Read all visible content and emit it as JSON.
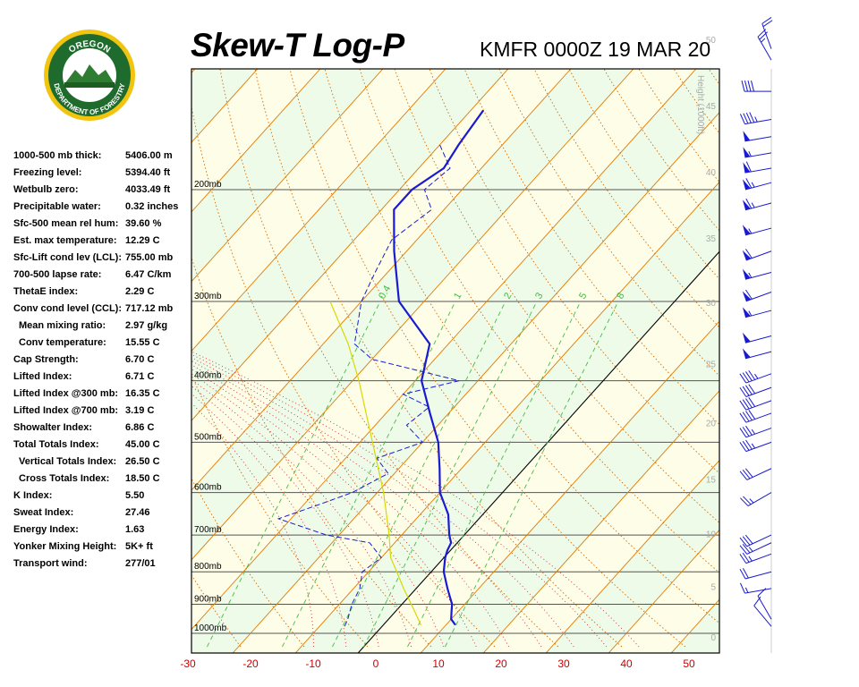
{
  "title": "Skew-T Log-P",
  "subtitle": "KMFR 0000Z 19 MAR 20",
  "logo": {
    "top_text": "OREGON",
    "bottom_text": "DEPARTMENT OF FORESTRY"
  },
  "stats": [
    {
      "label": "1000-500 mb thick:",
      "value": "5406.00 m",
      "indent": false
    },
    {
      "label": "Freezing level:",
      "value": "5394.40 ft",
      "indent": false
    },
    {
      "label": "Wetbulb zero:",
      "value": "4033.49 ft",
      "indent": false
    },
    {
      "label": "Precipitable water:",
      "value": "0.32 inches",
      "indent": false
    },
    {
      "label": "Sfc-500 mean rel hum:",
      "value": "39.60 %",
      "indent": false
    },
    {
      "label": "Est. max temperature:",
      "value": "12.29 C",
      "indent": false
    },
    {
      "label": "Sfc-Lift cond lev (LCL):",
      "value": "755.00 mb",
      "indent": false
    },
    {
      "label": "700-500 lapse rate:",
      "value": "6.47 C/km",
      "indent": false
    },
    {
      "label": "ThetaE index:",
      "value": "2.29 C",
      "indent": false
    },
    {
      "label": "Conv cond level (CCL):",
      "value": "717.12 mb",
      "indent": false
    },
    {
      "label": "Mean mixing ratio:",
      "value": "2.97 g/kg",
      "indent": true
    },
    {
      "label": "Conv temperature:",
      "value": "15.55 C",
      "indent": true
    },
    {
      "label": "Cap Strength:",
      "value": "6.70 C",
      "indent": false
    },
    {
      "label": "Lifted Index:",
      "value": "6.71 C",
      "indent": false
    },
    {
      "label": "Lifted Index @300 mb:",
      "value": "16.35 C",
      "indent": false
    },
    {
      "label": "Lifted Index @700 mb:",
      "value": "3.19 C",
      "indent": false
    },
    {
      "label": "Showalter Index:",
      "value": "6.86 C",
      "indent": false
    },
    {
      "label": "Total Totals Index:",
      "value": "45.00 C",
      "indent": false
    },
    {
      "label": "Vertical Totals Index:",
      "value": "26.50 C",
      "indent": true
    },
    {
      "label": "Cross Totals Index:",
      "value": "18.50 C",
      "indent": true
    },
    {
      "label": "K Index:",
      "value": "5.50",
      "indent": false
    },
    {
      "label": "Sweat Index:",
      "value": "27.46",
      "indent": false
    },
    {
      "label": "Energy Index:",
      "value": "1.63",
      "indent": false
    },
    {
      "label": "Yonker Mixing Height:",
      "value": "5K+ ft",
      "indent": false
    },
    {
      "label": "Transport wind:",
      "value": "277/01",
      "indent": false
    }
  ],
  "chart_data": {
    "type": "line",
    "xlabel": "",
    "ylabel": "",
    "x_ticks": [
      -30,
      -20,
      -10,
      0,
      10,
      20,
      30,
      40,
      50
    ],
    "x_tick_labels": [
      "-30",
      "-20",
      "-10",
      "0",
      "10",
      "20",
      "30",
      "40",
      "50"
    ],
    "pressure_levels": [
      {
        "p": 200,
        "label": "200mb"
      },
      {
        "p": 300,
        "label": "300mb"
      },
      {
        "p": 400,
        "label": "400mb"
      },
      {
        "p": 500,
        "label": "500mb"
      },
      {
        "p": 600,
        "label": "600mb"
      },
      {
        "p": 700,
        "label": "700mb"
      },
      {
        "p": 800,
        "label": "800mb"
      },
      {
        "p": 900,
        "label": "900mb"
      },
      {
        "p": 1000,
        "label": "1000mb"
      }
    ],
    "height_axis": {
      "title": "Height (1000ft)",
      "ticks": [
        {
          "kft": 0,
          "label": "0"
        },
        {
          "kft": 5,
          "label": "5"
        },
        {
          "kft": 10,
          "label": "10"
        },
        {
          "kft": 15,
          "label": "15"
        },
        {
          "kft": 20,
          "label": "20"
        },
        {
          "kft": 25,
          "label": "25"
        },
        {
          "kft": 30,
          "label": "30"
        },
        {
          "kft": 35,
          "label": "35"
        },
        {
          "kft": 40,
          "label": "40"
        },
        {
          "kft": 45,
          "label": "45"
        },
        {
          "kft": 50,
          "label": "50"
        }
      ]
    },
    "mixing_ratio_labels": [
      "0.4",
      "1",
      "2",
      "3",
      "5",
      "8"
    ],
    "series": [
      {
        "name": "",
        "role": "temperature",
        "color": "#1a1ad0",
        "points": [
          {
            "p": 970,
            "t": 11.5
          },
          {
            "p": 950,
            "t": 10.0
          },
          {
            "p": 925,
            "t": 9.0
          },
          {
            "p": 900,
            "t": 8.0
          },
          {
            "p": 850,
            "t": 5.0
          },
          {
            "p": 800,
            "t": 2.0
          },
          {
            "p": 760,
            "t": 0.2
          },
          {
            "p": 740,
            "t": -0.5
          },
          {
            "p": 720,
            "t": -1.0
          },
          {
            "p": 700,
            "t": -2.4
          },
          {
            "p": 650,
            "t": -5.5
          },
          {
            "p": 600,
            "t": -10.0
          },
          {
            "p": 550,
            "t": -13.5
          },
          {
            "p": 500,
            "t": -17.5
          },
          {
            "p": 450,
            "t": -23.0
          },
          {
            "p": 400,
            "t": -29.0
          },
          {
            "p": 350,
            "t": -33.0
          },
          {
            "p": 300,
            "t": -44.0
          },
          {
            "p": 250,
            "t": -52.0
          },
          {
            "p": 215,
            "t": -58.0
          },
          {
            "p": 200,
            "t": -58.0
          },
          {
            "p": 185,
            "t": -56.0
          },
          {
            "p": 170,
            "t": -57.0
          },
          {
            "p": 150,
            "t": -58.0
          }
        ]
      },
      {
        "name": "",
        "role": "dewpoint",
        "color": "#1a1ad0",
        "points": [
          {
            "p": 975,
            "t": -6.0
          },
          {
            "p": 950,
            "t": -6.5
          },
          {
            "p": 900,
            "t": -8.0
          },
          {
            "p": 850,
            "t": -9.0
          },
          {
            "p": 800,
            "t": -11.0
          },
          {
            "p": 760,
            "t": -10.0
          },
          {
            "p": 720,
            "t": -14.0
          },
          {
            "p": 700,
            "t": -22.0
          },
          {
            "p": 660,
            "t": -32.0
          },
          {
            "p": 630,
            "t": -28.0
          },
          {
            "p": 600,
            "t": -24.0
          },
          {
            "p": 560,
            "t": -21.0
          },
          {
            "p": 530,
            "t": -25.0
          },
          {
            "p": 500,
            "t": -20.0
          },
          {
            "p": 470,
            "t": -25.0
          },
          {
            "p": 440,
            "t": -24.0
          },
          {
            "p": 420,
            "t": -30.0
          },
          {
            "p": 400,
            "t": -23.0
          },
          {
            "p": 370,
            "t": -40.0
          },
          {
            "p": 350,
            "t": -45.0
          },
          {
            "p": 300,
            "t": -50.0
          },
          {
            "p": 270,
            "t": -52.0
          },
          {
            "p": 240,
            "t": -54.0
          },
          {
            "p": 215,
            "t": -52.0
          },
          {
            "p": 200,
            "t": -56.0
          },
          {
            "p": 185,
            "t": -55.0
          },
          {
            "p": 170,
            "t": -60.0
          }
        ]
      },
      {
        "name": "",
        "role": "parcel",
        "color": "#d8d800",
        "points": [
          {
            "p": 970,
            "t": 6.0
          },
          {
            "p": 900,
            "t": 1.5
          },
          {
            "p": 850,
            "t": -2.0
          },
          {
            "p": 800,
            "t": -5.5
          },
          {
            "p": 760,
            "t": -8.5
          },
          {
            "p": 700,
            "t": -12.0
          },
          {
            "p": 600,
            "t": -19.0
          },
          {
            "p": 500,
            "t": -28.0
          },
          {
            "p": 400,
            "t": -39.0
          },
          {
            "p": 350,
            "t": -46.0
          },
          {
            "p": 300,
            "t": -55.0
          }
        ]
      }
    ],
    "wind_barbs": [
      {
        "p": 975,
        "dir": 320,
        "spd": 10
      },
      {
        "p": 950,
        "dir": 330,
        "spd": 10
      },
      {
        "p": 850,
        "dir": 260,
        "spd": 15
      },
      {
        "p": 800,
        "dir": 255,
        "spd": 20
      },
      {
        "p": 750,
        "dir": 250,
        "spd": 25
      },
      {
        "p": 720,
        "dir": 245,
        "spd": 25
      },
      {
        "p": 700,
        "dir": 245,
        "spd": 30
      },
      {
        "p": 600,
        "dir": 240,
        "spd": 25
      },
      {
        "p": 550,
        "dir": 245,
        "spd": 30
      },
      {
        "p": 500,
        "dir": 250,
        "spd": 35
      },
      {
        "p": 475,
        "dir": 250,
        "spd": 35
      },
      {
        "p": 450,
        "dir": 250,
        "spd": 40
      },
      {
        "p": 430,
        "dir": 250,
        "spd": 40
      },
      {
        "p": 410,
        "dir": 250,
        "spd": 40
      },
      {
        "p": 390,
        "dir": 250,
        "spd": 45
      },
      {
        "p": 360,
        "dir": 255,
        "spd": 50
      },
      {
        "p": 340,
        "dir": 255,
        "spd": 50
      },
      {
        "p": 310,
        "dir": 255,
        "spd": 55
      },
      {
        "p": 290,
        "dir": 250,
        "spd": 60
      },
      {
        "p": 270,
        "dir": 255,
        "spd": 55
      },
      {
        "p": 250,
        "dir": 250,
        "spd": 60
      },
      {
        "p": 230,
        "dir": 255,
        "spd": 55
      },
      {
        "p": 210,
        "dir": 255,
        "spd": 65
      },
      {
        "p": 195,
        "dir": 255,
        "spd": 65
      },
      {
        "p": 185,
        "dir": 260,
        "spd": 60
      },
      {
        "p": 175,
        "dir": 260,
        "spd": 55
      },
      {
        "p": 165,
        "dir": 260,
        "spd": 50
      },
      {
        "p": 155,
        "dir": 260,
        "spd": 45
      },
      {
        "p": 140,
        "dir": 270,
        "spd": 40
      },
      {
        "p": 125,
        "dir": 330,
        "spd": 25
      },
      {
        "p": 120,
        "dir": 340,
        "spd": 20
      }
    ],
    "colors": {
      "isobar": "#555555",
      "isotherm": "#e07a00",
      "dry_adiabat": "#d46a00",
      "moist_adiabat": "#cc3333",
      "mixing_ratio": "#44bb44",
      "sounding": "#1a1ad0",
      "parcel": "#d8d800",
      "x_tick_label": "#cc0000",
      "band_light": "#eefbe9",
      "band_cream": "#fefde8",
      "barb": "#1a1ad0"
    }
  }
}
